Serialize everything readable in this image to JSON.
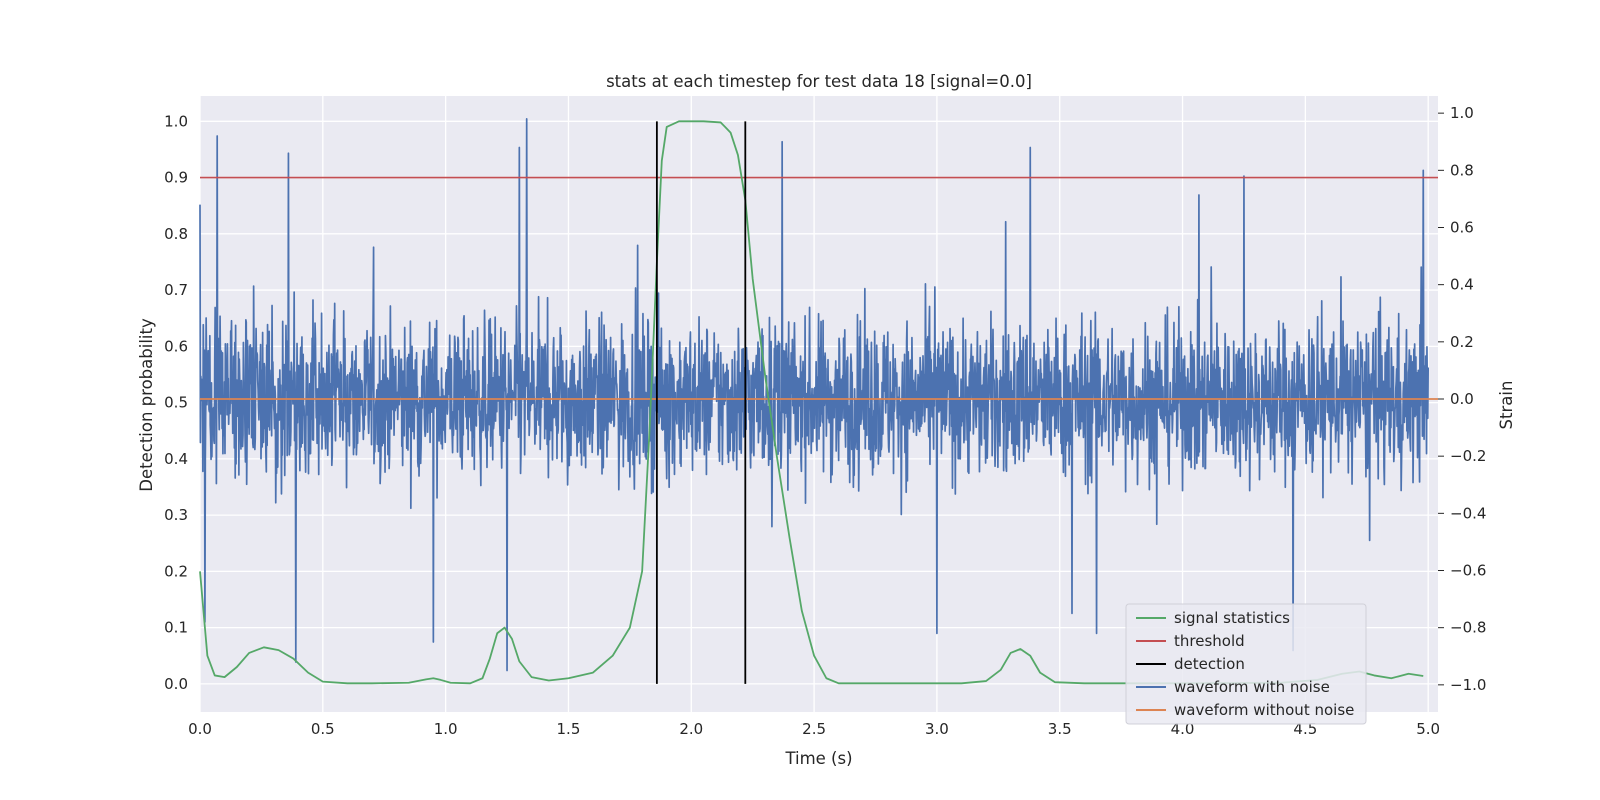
{
  "chart_data": {
    "type": "line",
    "title": "stats at each timestep for test data 18 [signal=0.0]",
    "xlabel": "Time (s)",
    "ylabel_left": "Detection probability",
    "ylabel_right": "Strain",
    "xlim": [
      0.0,
      5.04
    ],
    "ylim_left": [
      -0.05,
      1.045
    ],
    "ylim_right": [
      -1.095,
      1.06
    ],
    "x_ticks": [
      "0.0",
      "0.5",
      "1.0",
      "1.5",
      "2.0",
      "2.5",
      "3.0",
      "3.5",
      "4.0",
      "4.5",
      "5.0"
    ],
    "y_ticks_left": [
      "0.0",
      "0.1",
      "0.2",
      "0.3",
      "0.4",
      "0.5",
      "0.6",
      "0.7",
      "0.8",
      "0.9",
      "1.0"
    ],
    "y_ticks_right": [
      "−1.0",
      "−0.8",
      "−0.6",
      "−0.4",
      "−0.2",
      "0.0",
      "0.2",
      "0.4",
      "0.6",
      "0.8",
      "1.0"
    ],
    "grid": true,
    "legend_position": "lower-right",
    "series": [
      {
        "name": "signal statistics",
        "axis": "left",
        "color": "#55a868",
        "points": [
          [
            0.0,
            0.2
          ],
          [
            0.03,
            0.05
          ],
          [
            0.06,
            0.015
          ],
          [
            0.1,
            0.012
          ],
          [
            0.15,
            0.03
          ],
          [
            0.2,
            0.055
          ],
          [
            0.26,
            0.065
          ],
          [
            0.32,
            0.06
          ],
          [
            0.38,
            0.045
          ],
          [
            0.44,
            0.02
          ],
          [
            0.5,
            0.004
          ],
          [
            0.6,
            0.001
          ],
          [
            0.7,
            0.001
          ],
          [
            0.85,
            0.002
          ],
          [
            0.92,
            0.008
          ],
          [
            0.95,
            0.01
          ],
          [
            0.98,
            0.007
          ],
          [
            1.02,
            0.002
          ],
          [
            1.1,
            0.001
          ],
          [
            1.15,
            0.01
          ],
          [
            1.18,
            0.045
          ],
          [
            1.21,
            0.09
          ],
          [
            1.24,
            0.1
          ],
          [
            1.27,
            0.08
          ],
          [
            1.3,
            0.04
          ],
          [
            1.35,
            0.012
          ],
          [
            1.42,
            0.006
          ],
          [
            1.5,
            0.01
          ],
          [
            1.6,
            0.02
          ],
          [
            1.68,
            0.05
          ],
          [
            1.75,
            0.1
          ],
          [
            1.8,
            0.2
          ],
          [
            1.83,
            0.45
          ],
          [
            1.86,
            0.75
          ],
          [
            1.88,
            0.93
          ],
          [
            1.9,
            0.99
          ],
          [
            1.95,
            1.0
          ],
          [
            2.05,
            1.0
          ],
          [
            2.12,
            0.998
          ],
          [
            2.16,
            0.98
          ],
          [
            2.19,
            0.94
          ],
          [
            2.22,
            0.86
          ],
          [
            2.25,
            0.72
          ],
          [
            2.3,
            0.55
          ],
          [
            2.35,
            0.4
          ],
          [
            2.4,
            0.26
          ],
          [
            2.45,
            0.13
          ],
          [
            2.5,
            0.05
          ],
          [
            2.55,
            0.01
          ],
          [
            2.6,
            0.001
          ],
          [
            2.8,
            0.001
          ],
          [
            3.1,
            0.001
          ],
          [
            3.2,
            0.005
          ],
          [
            3.26,
            0.025
          ],
          [
            3.3,
            0.055
          ],
          [
            3.34,
            0.062
          ],
          [
            3.38,
            0.05
          ],
          [
            3.42,
            0.02
          ],
          [
            3.48,
            0.003
          ],
          [
            3.6,
            0.001
          ],
          [
            4.0,
            0.001
          ],
          [
            4.4,
            0.002
          ],
          [
            4.55,
            0.007
          ],
          [
            4.65,
            0.018
          ],
          [
            4.72,
            0.022
          ],
          [
            4.78,
            0.015
          ],
          [
            4.85,
            0.01
          ],
          [
            4.92,
            0.018
          ],
          [
            4.98,
            0.014
          ]
        ]
      },
      {
        "name": "threshold",
        "axis": "left",
        "color": "#c44e52",
        "y": 0.9
      },
      {
        "name": "detection",
        "axis": "left",
        "color": "#000000",
        "x": [
          1.86,
          2.22
        ],
        "y_range": [
          0.0,
          1.0
        ]
      },
      {
        "name": "waveform with noise",
        "axis": "right",
        "color": "#4c72b0",
        "description": "dense noise trace 0–5 s, roughly spanning −0.65 to 0.70 strain with spikes near ±0.9",
        "spikes": [
          [
            0.0,
            0.68
          ],
          [
            0.02,
            -0.78
          ],
          [
            0.07,
            0.92
          ],
          [
            0.36,
            0.86
          ],
          [
            0.39,
            -0.92
          ],
          [
            0.95,
            -0.85
          ],
          [
            1.25,
            -0.95
          ],
          [
            1.3,
            0.88
          ],
          [
            1.33,
            0.98
          ],
          [
            2.37,
            0.9
          ],
          [
            3.0,
            -0.82
          ],
          [
            3.28,
            0.62
          ],
          [
            3.38,
            0.88
          ],
          [
            3.55,
            -0.75
          ],
          [
            3.65,
            -0.82
          ],
          [
            4.25,
            0.78
          ],
          [
            4.45,
            -0.88
          ],
          [
            4.98,
            0.8
          ]
        ]
      },
      {
        "name": "waveform without noise",
        "axis": "right",
        "color": "#dd8452",
        "y": 0.0
      }
    ]
  }
}
